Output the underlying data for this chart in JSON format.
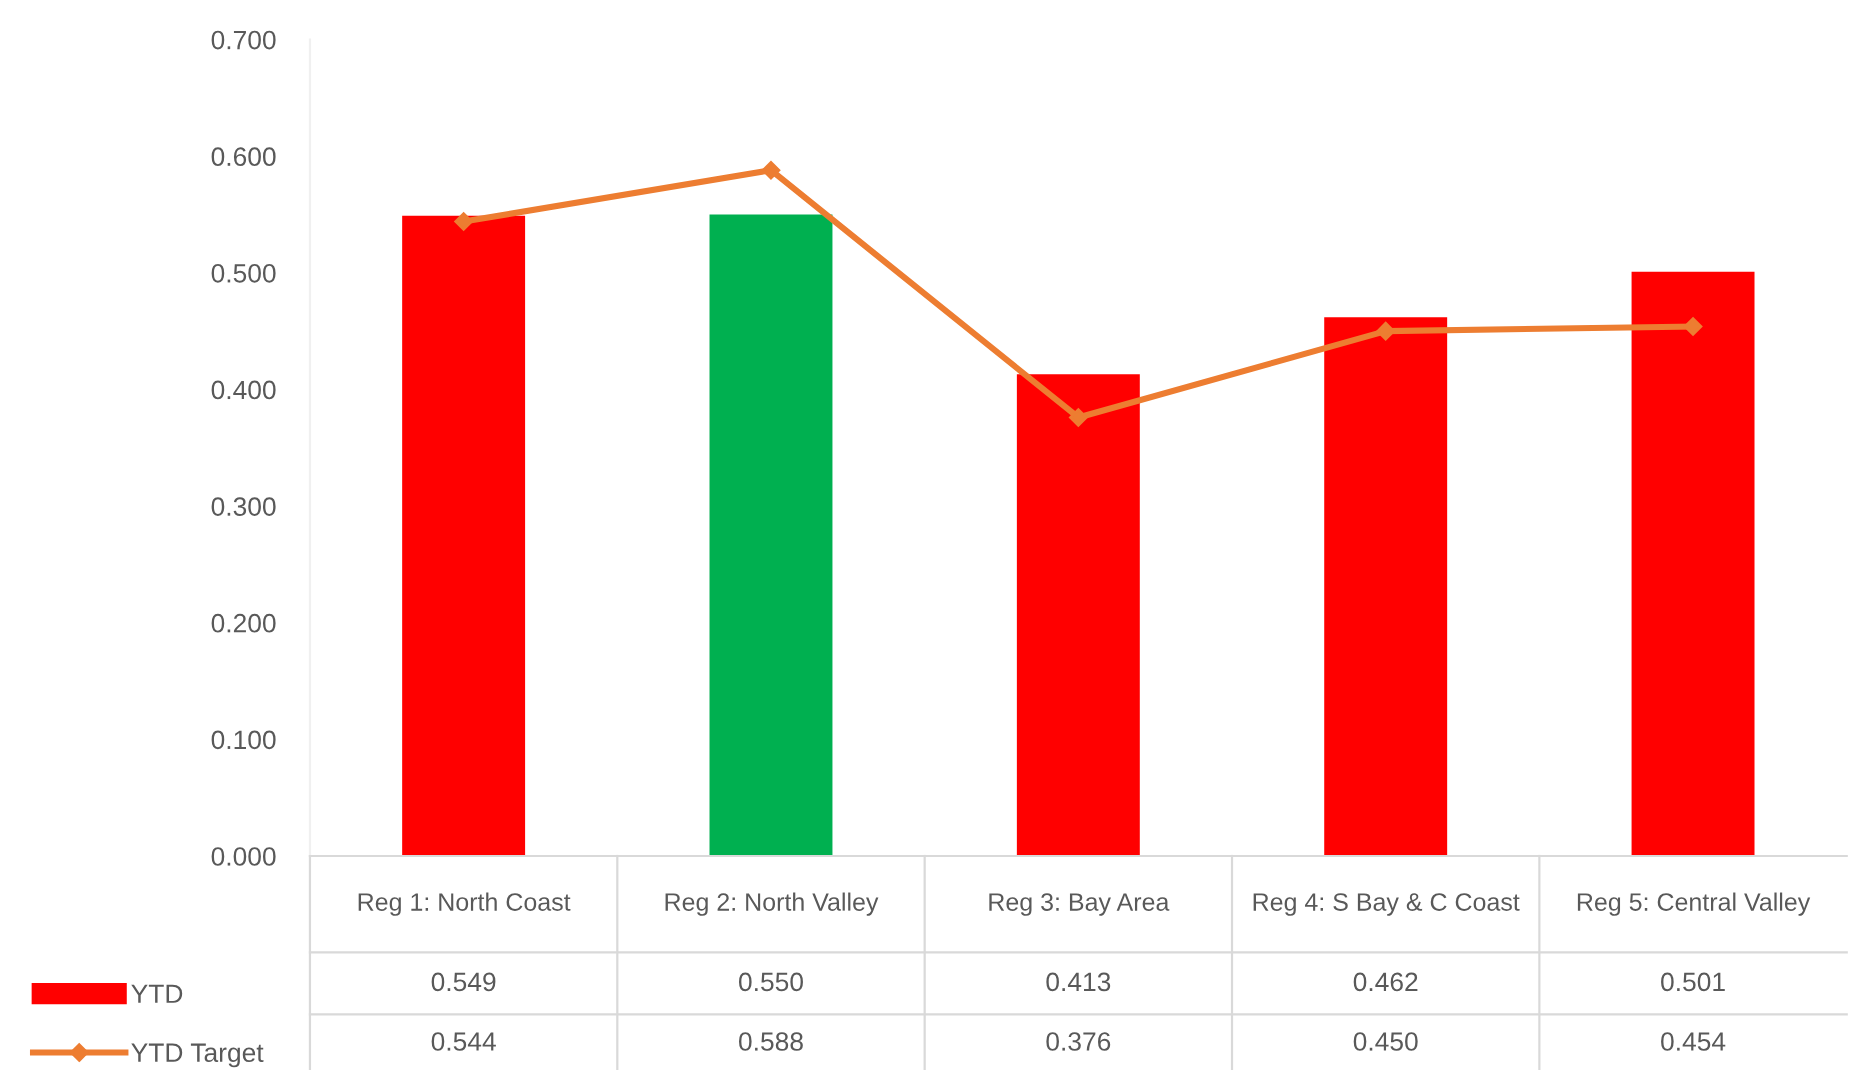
{
  "chart_data": {
    "type": "bar",
    "categories": [
      "Reg 1: North Coast",
      "Reg 2: North Valley",
      "Reg 3: Bay Area",
      "Reg 4: S Bay & C Coast",
      "Reg 5: Central Valley"
    ],
    "series": [
      {
        "name": "YTD",
        "colors": [
          "#ff0000",
          "#00b050",
          "#ff0000",
          "#ff0000",
          "#ff0000"
        ],
        "color": "#ff0000",
        "values": [
          0.549,
          0.55,
          0.413,
          0.462,
          0.501
        ],
        "value_labels": [
          "0.549",
          "0.550",
          "0.413",
          "0.462",
          "0.501"
        ]
      },
      {
        "name": "YTD Target",
        "type": "line",
        "color": "#ed7d31",
        "marker": "diamond",
        "values": [
          0.544,
          0.588,
          0.376,
          0.45,
          0.454
        ],
        "value_labels": [
          "0.544",
          "0.588",
          "0.376",
          "0.450",
          "0.454"
        ]
      }
    ],
    "ylim": [
      0,
      0.7
    ],
    "yticks": [
      {
        "value": 0,
        "label": "0.000"
      },
      {
        "value": 0.1,
        "label": "0.100"
      },
      {
        "value": 0.2,
        "label": "0.200"
      },
      {
        "value": 0.3,
        "label": "0.300"
      },
      {
        "value": 0.4,
        "label": "0.400"
      },
      {
        "value": 0.5,
        "label": "0.500"
      },
      {
        "value": 0.6,
        "label": "0.600"
      },
      {
        "value": 0.7,
        "label": "0.700"
      }
    ],
    "legend": "bottom left",
    "grid": false
  }
}
